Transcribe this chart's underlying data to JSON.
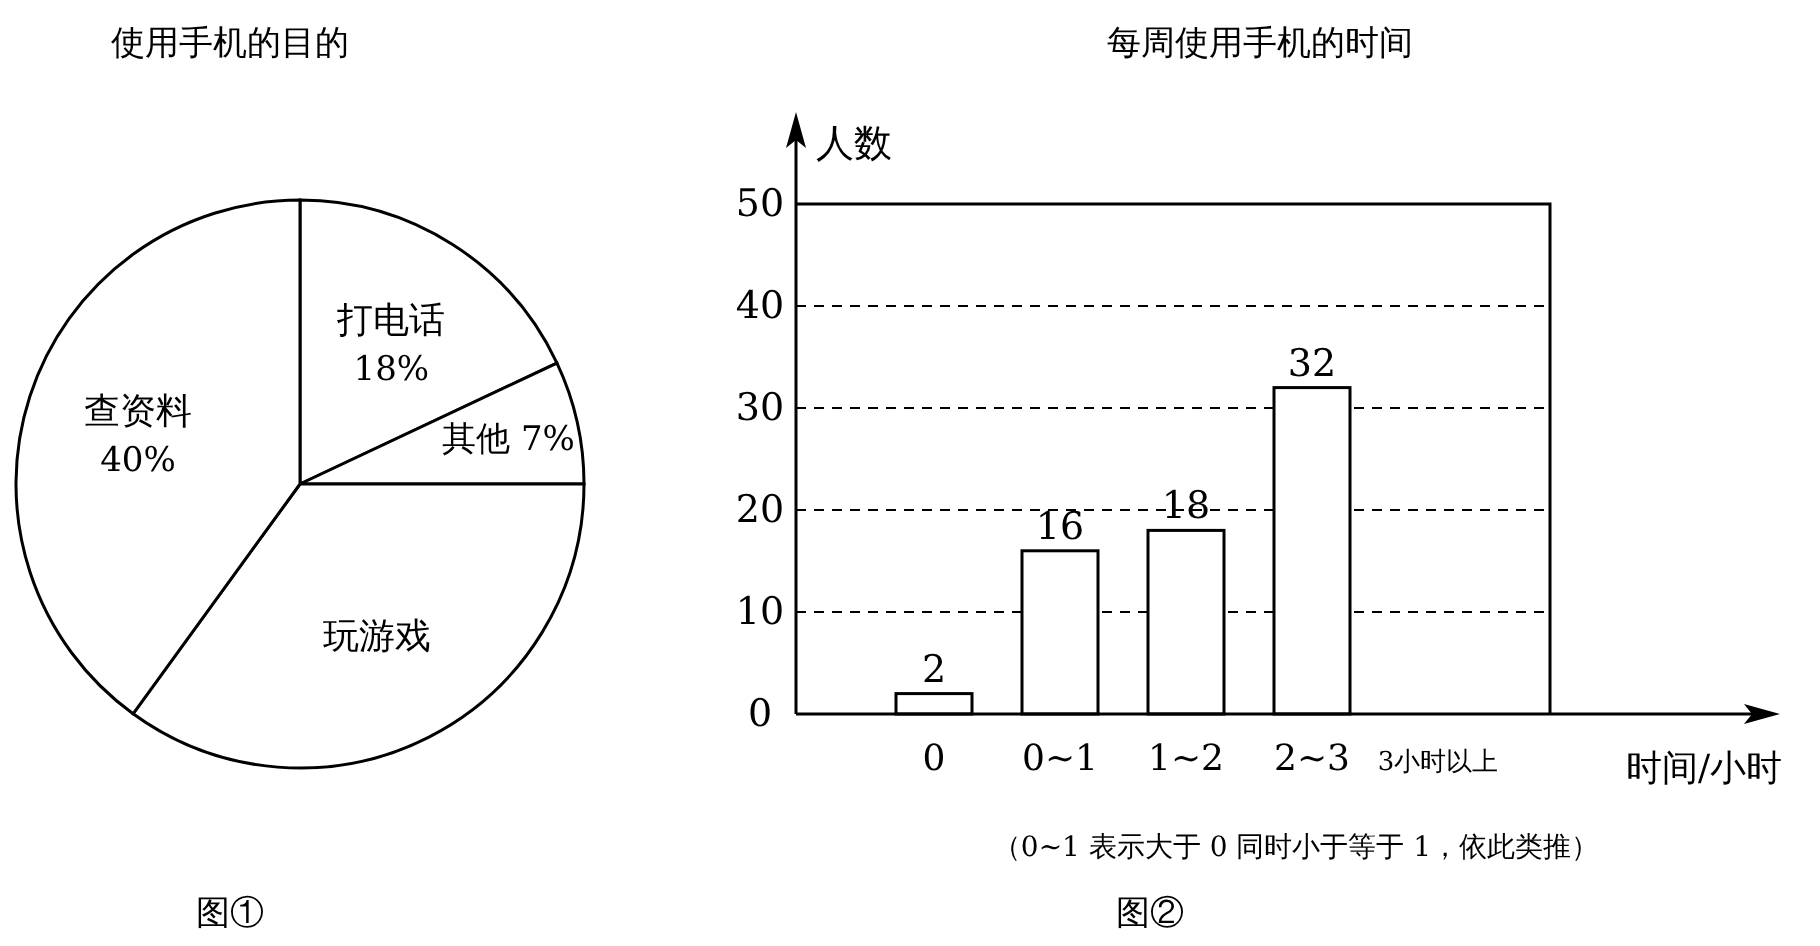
{
  "chart_data": [
    {
      "type": "pie",
      "title": "使用手机的目的",
      "categories": [
        "打电话",
        "其他",
        "玩游戏",
        "查资料"
      ],
      "values": [
        18,
        7,
        35,
        40
      ],
      "colors": [
        "#ffffff",
        "#ffffff",
        "#ffffff",
        "#ffffff"
      ],
      "value_labels": [
        "18%",
        "7%",
        null,
        "40%"
      ],
      "annotations": [
        "图①"
      ]
    },
    {
      "type": "bar",
      "title": "每周使用手机的时间",
      "xlabel": "时间/小时",
      "ylabel": "人数",
      "categories": [
        "0",
        "0~1",
        "1~2",
        "2~3",
        "3小时以上"
      ],
      "values": [
        2,
        16,
        18,
        32,
        null
      ],
      "color": "#ffffff",
      "ylim": [
        0,
        50
      ],
      "yticks": [
        0,
        10,
        20,
        30,
        40,
        50
      ],
      "grid": "y",
      "data_labels": true,
      "annotations": [
        "（0~1 表示大于 0 同时小于等于 1，依此类推）",
        "图②"
      ]
    }
  ]
}
